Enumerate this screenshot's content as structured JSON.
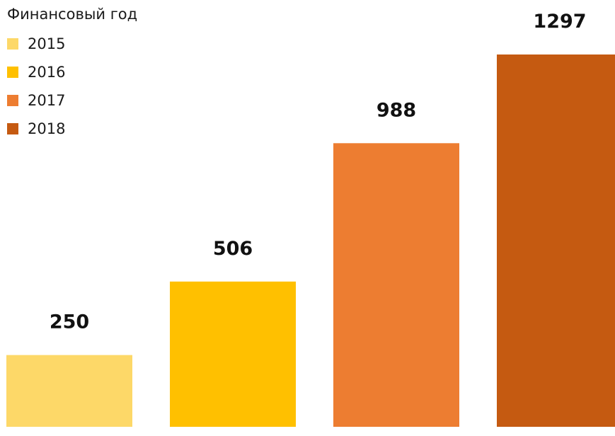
{
  "legend": {
    "title": "Финансовый год",
    "items": [
      {
        "label": "2015",
        "color": "#FDD868"
      },
      {
        "label": "2016",
        "color": "#FFC000"
      },
      {
        "label": "2017",
        "color": "#ED7D31"
      },
      {
        "label": "2018",
        "color": "#C55A11"
      }
    ]
  },
  "chart_data": {
    "type": "bar",
    "categories": [
      "2015",
      "2016",
      "2017",
      "2018"
    ],
    "values": [
      250,
      506,
      988,
      1297
    ],
    "data_labels": [
      "250",
      "506",
      "988",
      "1297"
    ],
    "colors": [
      "#FDD868",
      "#FFC000",
      "#ED7D31",
      "#C55A11"
    ],
    "title": "",
    "xlabel": "",
    "ylabel": "",
    "legend_title": "Финансовый год",
    "legend_position": "top-left",
    "ylim": [
      0,
      1297
    ],
    "grid": false,
    "axes_visible": false
  }
}
